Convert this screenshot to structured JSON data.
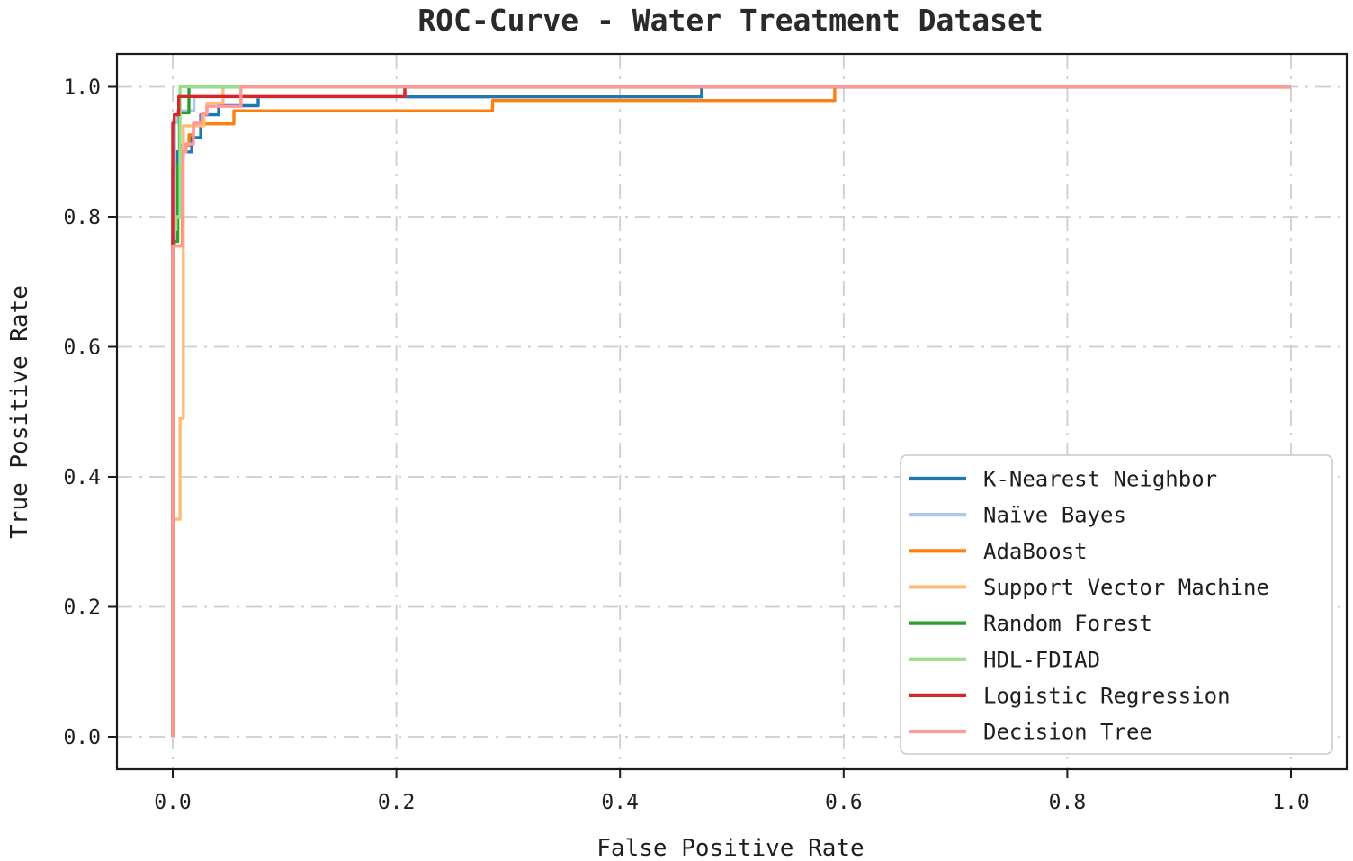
{
  "figure": {
    "title": "ROC-Curve - Water Treatment Dataset"
  },
  "chart_data": {
    "type": "line",
    "subtype": "roc_step_curves",
    "title": "ROC-Curve - Water Treatment Dataset",
    "xlabel": "False Positive Rate",
    "ylabel": "True Positive Rate",
    "xlim": [
      -0.05,
      1.05
    ],
    "ylim": [
      -0.05,
      1.05
    ],
    "x_ticks": {
      "values": [
        0.0,
        0.2,
        0.4,
        0.6,
        0.8,
        1.0
      ],
      "labels": [
        "0.0",
        "0.2",
        "0.4",
        "0.6",
        "0.8",
        "1.0"
      ]
    },
    "y_ticks": {
      "values": [
        0.0,
        0.2,
        0.4,
        0.6,
        0.8,
        1.0
      ],
      "labels": [
        "0.0",
        "0.2",
        "0.4",
        "0.6",
        "0.8",
        "1.0"
      ]
    },
    "grid": {
      "visible": true,
      "style": "dash-dot",
      "color": "#cdcdcd"
    },
    "legend": {
      "position": "lower right",
      "background": "#ffffff",
      "border_color": "#c9c9c9"
    },
    "axis_color": "#1b1b1b",
    "series": [
      {
        "name": "K-Nearest Neighbor",
        "color": "#1f77b4",
        "points": [
          [
            0,
            0
          ],
          [
            0,
            0.875
          ],
          [
            0.0035,
            0.875
          ],
          [
            0.0035,
            0.9
          ],
          [
            0.017,
            0.9
          ],
          [
            0.017,
            0.922
          ],
          [
            0.025,
            0.922
          ],
          [
            0.025,
            0.957
          ],
          [
            0.041,
            0.957
          ],
          [
            0.041,
            0.971
          ],
          [
            0.0764,
            0.971
          ],
          [
            0.0764,
            0.9845
          ],
          [
            0.473,
            0.9845
          ],
          [
            0.473,
            1
          ],
          [
            1,
            1
          ]
        ]
      },
      {
        "name": "Naïve Bayes",
        "color": "#aec7e8",
        "points": [
          [
            0,
            0
          ],
          [
            0,
            0.755
          ],
          [
            0.0018,
            0.755
          ],
          [
            0.0018,
            0.945
          ],
          [
            0.0045,
            0.945
          ],
          [
            0.0045,
            0.963
          ],
          [
            0.019,
            0.963
          ],
          [
            0.019,
            0.9845
          ],
          [
            0.2076,
            0.9845
          ],
          [
            0.2076,
            1
          ],
          [
            1,
            1
          ]
        ]
      },
      {
        "name": "AdaBoost",
        "color": "#ff7f0e",
        "points": [
          [
            0,
            0
          ],
          [
            0,
            0.755
          ],
          [
            0.0085,
            0.755
          ],
          [
            0.0085,
            0.91
          ],
          [
            0.0145,
            0.91
          ],
          [
            0.0145,
            0.926
          ],
          [
            0.0185,
            0.926
          ],
          [
            0.0185,
            0.943
          ],
          [
            0.0547,
            0.943
          ],
          [
            0.0547,
            0.963
          ],
          [
            0.286,
            0.963
          ],
          [
            0.286,
            0.979
          ],
          [
            0.592,
            0.979
          ],
          [
            0.592,
            1
          ],
          [
            1,
            1
          ]
        ]
      },
      {
        "name": "Support Vector Machine",
        "color": "#ffbb78",
        "points": [
          [
            0,
            0
          ],
          [
            0,
            0.335
          ],
          [
            0.0065,
            0.335
          ],
          [
            0.0065,
            0.49
          ],
          [
            0.0095,
            0.49
          ],
          [
            0.0095,
            0.94
          ],
          [
            0.028,
            0.94
          ],
          [
            0.028,
            0.958
          ],
          [
            0.0306,
            0.958
          ],
          [
            0.0306,
            0.975
          ],
          [
            0.045,
            0.975
          ],
          [
            0.045,
            1
          ],
          [
            1,
            1
          ]
        ]
      },
      {
        "name": "Random Forest",
        "color": "#2ca02c",
        "points": [
          [
            0,
            0
          ],
          [
            0,
            0.762
          ],
          [
            0.0045,
            0.762
          ],
          [
            0.0045,
            0.88
          ],
          [
            0.006,
            0.88
          ],
          [
            0.006,
            0.96
          ],
          [
            0.0145,
            0.96
          ],
          [
            0.0145,
            1
          ],
          [
            1,
            1
          ]
        ]
      },
      {
        "name": "HDL-FDIAD",
        "color": "#98df8a",
        "points": [
          [
            0,
            0
          ],
          [
            0,
            0.78
          ],
          [
            0.003,
            0.78
          ],
          [
            0.003,
            0.8
          ],
          [
            0.0065,
            0.8
          ],
          [
            0.0065,
            1
          ],
          [
            1,
            1
          ]
        ]
      },
      {
        "name": "Logistic Regression",
        "color": "#d62728",
        "points": [
          [
            0,
            0
          ],
          [
            0,
            0.944
          ],
          [
            0.0014,
            0.944
          ],
          [
            0.0014,
            0.957
          ],
          [
            0.0054,
            0.957
          ],
          [
            0.0054,
            0.985
          ],
          [
            0.2076,
            0.985
          ],
          [
            0.2076,
            1
          ],
          [
            1,
            1
          ]
        ]
      },
      {
        "name": "Decision Tree",
        "color": "#ff9896",
        "points": [
          [
            0,
            0
          ],
          [
            0,
            0.755
          ],
          [
            0.009,
            0.755
          ],
          [
            0.009,
            0.9
          ],
          [
            0.012,
            0.9
          ],
          [
            0.012,
            0.912
          ],
          [
            0.0185,
            0.912
          ],
          [
            0.0185,
            0.944
          ],
          [
            0.026,
            0.944
          ],
          [
            0.026,
            0.958
          ],
          [
            0.0306,
            0.958
          ],
          [
            0.0306,
            0.97
          ],
          [
            0.061,
            0.97
          ],
          [
            0.061,
            1
          ],
          [
            1,
            1
          ]
        ]
      }
    ]
  }
}
